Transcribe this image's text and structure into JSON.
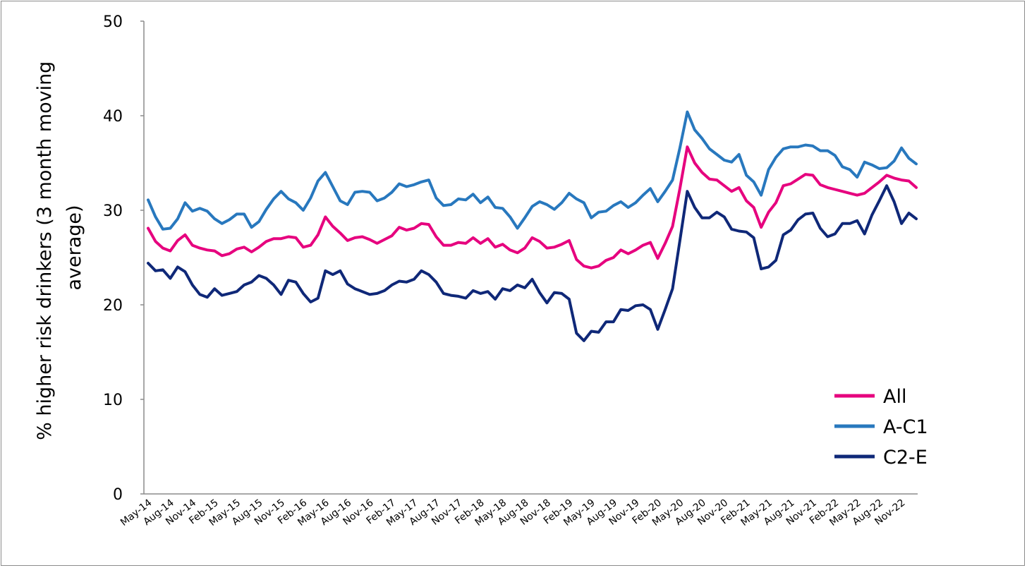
{
  "chart_data": {
    "type": "line",
    "ylabel": "% higher risk drinkers (3 month moving average)",
    "ylabel_lines": [
      "% higher risk drinkers (3 month moving",
      "average)"
    ],
    "xlabel": "",
    "ylim": [
      0,
      50
    ],
    "yticks": [
      0,
      10,
      20,
      30,
      40,
      50
    ],
    "grid": false,
    "legend_position": "bottom-right",
    "x": [
      "May-14",
      "Jun-14",
      "Jul-14",
      "Aug-14",
      "Sep-14",
      "Oct-14",
      "Nov-14",
      "Dec-14",
      "Jan-15",
      "Feb-15",
      "Mar-15",
      "Apr-15",
      "May-15",
      "Jun-15",
      "Jul-15",
      "Aug-15",
      "Sep-15",
      "Oct-15",
      "Nov-15",
      "Dec-15",
      "Jan-16",
      "Feb-16",
      "Mar-16",
      "Apr-16",
      "May-16",
      "Jun-16",
      "Jul-16",
      "Aug-16",
      "Sep-16",
      "Oct-16",
      "Nov-16",
      "Dec-16",
      "Jan-17",
      "Feb-17",
      "Mar-17",
      "Apr-17",
      "May-17",
      "Jun-17",
      "Jul-17",
      "Aug-17",
      "Sep-17",
      "Oct-17",
      "Nov-17",
      "Dec-17",
      "Jan-18",
      "Feb-18",
      "Mar-18",
      "Apr-18",
      "May-18",
      "Jun-18",
      "Jul-18",
      "Aug-18",
      "Sep-18",
      "Oct-18",
      "Nov-18",
      "Dec-18",
      "Jan-19",
      "Feb-19",
      "Mar-19",
      "Apr-19",
      "May-19",
      "Jun-19",
      "Jul-19",
      "Aug-19",
      "Sep-19",
      "Oct-19",
      "Nov-19",
      "Dec-19",
      "Jan-20",
      "Feb-20",
      "Mar-20",
      "Apr-20",
      "May-20",
      "Jun-20",
      "Jul-20",
      "Aug-20",
      "Sep-20",
      "Oct-20",
      "Nov-20",
      "Dec-20",
      "Jan-21",
      "Feb-21",
      "Mar-21",
      "Apr-21",
      "May-21",
      "Jun-21",
      "Jul-21",
      "Aug-21",
      "Sep-21",
      "Oct-21",
      "Nov-21",
      "Dec-21",
      "Jan-22",
      "Feb-22",
      "Mar-22",
      "Apr-22",
      "May-22",
      "Jun-22",
      "Jul-22",
      "Aug-22",
      "Sep-22",
      "Oct-22",
      "Nov-22",
      "Dec-22",
      "Jan-23"
    ],
    "x_tick_labels": [
      "May-14",
      "Aug-14",
      "Nov-14",
      "Feb-15",
      "May-15",
      "Aug-15",
      "Nov-15",
      "Feb-16",
      "May-16",
      "Aug-16",
      "Nov-16",
      "Feb-17",
      "May-17",
      "Aug-17",
      "Nov-17",
      "Feb-18",
      "May-18",
      "Aug-18",
      "Nov-18",
      "Feb-19",
      "May-19",
      "Aug-19",
      "Nov-19",
      "Feb-20",
      "May-20",
      "Aug-20",
      "Nov-20",
      "Feb-21",
      "May-21",
      "Aug-21",
      "Nov-21",
      "Feb-22",
      "May-22",
      "Aug-22",
      "Nov-22"
    ],
    "series": [
      {
        "name": "All",
        "color": "#e6007e",
        "values": [
          28.1,
          26.7,
          26.0,
          25.7,
          26.8,
          27.4,
          26.3,
          26.0,
          25.8,
          25.7,
          25.2,
          25.4,
          25.9,
          26.1,
          25.6,
          26.1,
          26.7,
          27.0,
          27.0,
          27.2,
          27.1,
          26.1,
          26.3,
          27.4,
          29.3,
          28.3,
          27.6,
          26.8,
          27.1,
          27.2,
          26.9,
          26.5,
          26.9,
          27.3,
          28.2,
          27.9,
          28.1,
          28.6,
          28.5,
          27.2,
          26.3,
          26.3,
          26.6,
          26.5,
          27.1,
          26.5,
          27.0,
          26.1,
          26.4,
          25.8,
          25.5,
          26.0,
          27.1,
          26.7,
          26.0,
          26.1,
          26.4,
          26.8,
          24.8,
          24.1,
          23.9,
          24.1,
          24.7,
          25.0,
          25.8,
          25.4,
          25.8,
          26.3,
          26.6,
          24.9,
          26.5,
          28.3,
          32.3,
          36.7,
          35.0,
          34.0,
          33.3,
          33.2,
          32.6,
          32.0,
          32.4,
          31.0,
          30.3,
          28.2,
          29.8,
          30.8,
          32.6,
          32.8,
          33.3,
          33.8,
          33.7,
          32.7,
          32.4,
          32.2,
          32.0,
          31.8,
          31.6,
          31.8,
          32.4,
          33.0,
          33.7,
          33.4,
          33.2,
          33.1,
          32.4
        ]
      },
      {
        "name": "A-C1",
        "color": "#2878be",
        "values": [
          31.1,
          29.3,
          28.0,
          28.1,
          29.1,
          30.8,
          29.9,
          30.2,
          29.9,
          29.1,
          28.6,
          29.0,
          29.6,
          29.6,
          28.2,
          28.8,
          30.1,
          31.2,
          32.0,
          31.2,
          30.8,
          30.0,
          31.3,
          33.1,
          34.0,
          32.5,
          31.0,
          30.6,
          31.9,
          32.0,
          31.9,
          31.0,
          31.3,
          31.9,
          32.8,
          32.5,
          32.7,
          33.0,
          33.2,
          31.3,
          30.5,
          30.6,
          31.2,
          31.1,
          31.7,
          30.8,
          31.4,
          30.3,
          30.2,
          29.3,
          28.1,
          29.2,
          30.4,
          30.9,
          30.6,
          30.1,
          30.8,
          31.8,
          31.2,
          30.8,
          29.2,
          29.8,
          29.9,
          30.5,
          30.9,
          30.3,
          30.8,
          31.6,
          32.3,
          30.9,
          32.0,
          33.2,
          36.6,
          40.4,
          38.5,
          37.6,
          36.5,
          35.9,
          35.3,
          35.1,
          35.9,
          33.7,
          33.0,
          31.6,
          34.3,
          35.6,
          36.5,
          36.7,
          36.7,
          36.9,
          36.8,
          36.3,
          36.3,
          35.8,
          34.6,
          34.3,
          33.5,
          35.1,
          34.8,
          34.4,
          34.5,
          35.2,
          36.6,
          35.5,
          34.9
        ]
      },
      {
        "name": "C2-E",
        "color": "#0f2878",
        "values": [
          24.4,
          23.6,
          23.7,
          22.8,
          24.0,
          23.5,
          22.1,
          21.1,
          20.8,
          21.7,
          21.0,
          21.2,
          21.4,
          22.1,
          22.4,
          23.1,
          22.8,
          22.1,
          21.1,
          22.6,
          22.4,
          21.2,
          20.3,
          20.7,
          23.6,
          23.2,
          23.6,
          22.2,
          21.7,
          21.4,
          21.1,
          21.2,
          21.5,
          22.1,
          22.5,
          22.4,
          22.7,
          23.6,
          23.2,
          22.4,
          21.2,
          21.0,
          20.9,
          20.7,
          21.5,
          21.2,
          21.4,
          20.6,
          21.7,
          21.5,
          22.1,
          21.8,
          22.7,
          21.3,
          20.2,
          21.3,
          21.2,
          20.6,
          17.0,
          16.2,
          17.2,
          17.1,
          18.2,
          18.2,
          19.5,
          19.4,
          19.9,
          20.0,
          19.5,
          17.4,
          19.5,
          21.7,
          26.8,
          32.0,
          30.3,
          29.2,
          29.2,
          29.8,
          29.3,
          28.0,
          27.8,
          27.7,
          27.1,
          23.8,
          24.0,
          24.7,
          27.4,
          27.9,
          29.0,
          29.6,
          29.7,
          28.1,
          27.2,
          27.5,
          28.6,
          28.6,
          28.9,
          27.5,
          29.5,
          31.0,
          32.6,
          30.9,
          28.6,
          29.7,
          29.1
        ]
      }
    ],
    "legend": {
      "all_label": "All",
      "ac1_label": "A-C1",
      "c2e_label": "C2-E"
    }
  }
}
